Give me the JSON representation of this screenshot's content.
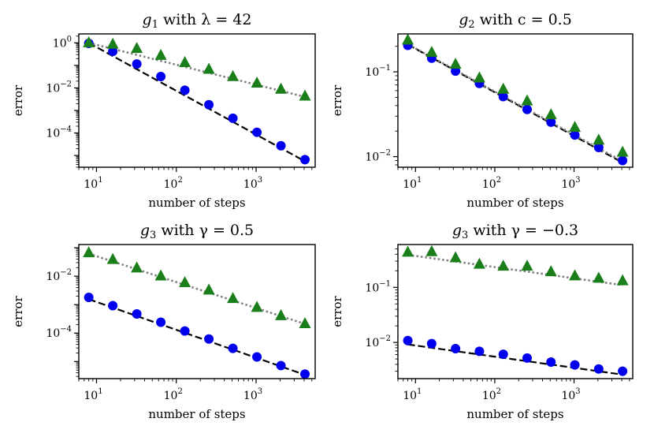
{
  "figure": {
    "xlabel": "number of steps",
    "ylabel": "error"
  },
  "colors": {
    "circle": "#0000ee",
    "triangle": "#1a7f1a",
    "dashed": "#000000",
    "dotted": "#808080"
  },
  "chart_data": [
    {
      "type": "scatter",
      "title": "g1 with λ = 42",
      "title_parts": [
        "g",
        "1",
        " with λ = 42"
      ],
      "xlabel": "number of steps",
      "ylabel": "error",
      "xscale": "log",
      "yscale": "log",
      "xlim": [
        6,
        5500
      ],
      "ylim": [
        3e-06,
        2.5
      ],
      "xticks": [
        {
          "base": "10",
          "exp": "1"
        },
        {
          "base": "10",
          "exp": "2"
        },
        {
          "base": "10",
          "exp": "3"
        }
      ],
      "xtick_values": [
        10,
        100,
        1000
      ],
      "yticks": [
        {
          "base": "10",
          "exp": "−4"
        },
        {
          "base": "10",
          "exp": "−2"
        },
        {
          "base": "10",
          "exp": "0"
        }
      ],
      "ytick_values": [
        0.0001,
        0.01,
        1
      ],
      "x": [
        8,
        16,
        32,
        64,
        128,
        256,
        512,
        1024,
        2048,
        4096
      ],
      "series": [
        {
          "name": "circles",
          "marker": "circle",
          "values": [
            0.95,
            0.42,
            0.115,
            0.032,
            0.0079,
            0.0018,
            0.00045,
            0.000107,
            2.7e-05,
            6.5e-06
          ]
        },
        {
          "name": "triangles",
          "marker": "triangle",
          "values": [
            0.98,
            0.85,
            0.55,
            0.27,
            0.13,
            0.065,
            0.031,
            0.016,
            0.0085,
            0.0042
          ]
        }
      ],
      "fits": [
        {
          "name": "dashed fit",
          "style": "dashed",
          "x": [
            8,
            4096
          ],
          "y": [
            1.0,
            5.5e-06
          ]
        },
        {
          "name": "dotted fit",
          "style": "dotted",
          "x": [
            8,
            4096
          ],
          "y": [
            1.0,
            0.004
          ]
        }
      ]
    },
    {
      "type": "scatter",
      "title": "g2 with c = 0.5",
      "title_parts": [
        "g",
        "2",
        " with c = 0.5"
      ],
      "xlabel": "number of steps",
      "ylabel": "error",
      "xscale": "log",
      "yscale": "log",
      "xlim": [
        6,
        5500
      ],
      "ylim": [
        0.0075,
        0.28
      ],
      "xticks": [
        {
          "base": "10",
          "exp": "1"
        },
        {
          "base": "10",
          "exp": "2"
        },
        {
          "base": "10",
          "exp": "3"
        }
      ],
      "xtick_values": [
        10,
        100,
        1000
      ],
      "yticks": [
        {
          "base": "10",
          "exp": "−2"
        },
        {
          "base": "10",
          "exp": "−1"
        }
      ],
      "ytick_values": [
        0.01,
        0.1
      ],
      "x": [
        8,
        16,
        32,
        64,
        128,
        256,
        512,
        1024,
        2048,
        4096
      ],
      "series": [
        {
          "name": "circles",
          "marker": "circle",
          "values": [
            0.205,
            0.145,
            0.102,
            0.073,
            0.051,
            0.036,
            0.0255,
            0.018,
            0.0128,
            0.009
          ]
        },
        {
          "name": "triangles",
          "marker": "triangle",
          "values": [
            0.235,
            0.168,
            0.122,
            0.084,
            0.062,
            0.045,
            0.031,
            0.022,
            0.0155,
            0.0112
          ]
        }
      ],
      "fits": [
        {
          "name": "dashed fit",
          "style": "dashed",
          "x": [
            8,
            4096
          ],
          "y": [
            0.21,
            0.0085
          ]
        },
        {
          "name": "dotted fit",
          "style": "dotted",
          "x": [
            8,
            4096
          ],
          "y": [
            0.212,
            0.0088
          ]
        }
      ]
    },
    {
      "type": "scatter",
      "title": "g3 with γ = 0.5",
      "title_parts": [
        "g",
        "3",
        " with γ = 0.5"
      ],
      "xlabel": "number of steps",
      "ylabel": "error",
      "xscale": "log",
      "yscale": "log",
      "xlim": [
        6,
        5500
      ],
      "ylim": [
        2.5e-06,
        0.13
      ],
      "xticks": [
        {
          "base": "10",
          "exp": "1"
        },
        {
          "base": "10",
          "exp": "2"
        },
        {
          "base": "10",
          "exp": "3"
        }
      ],
      "xtick_values": [
        10,
        100,
        1000
      ],
      "yticks": [
        {
          "base": "10",
          "exp": "−4"
        },
        {
          "base": "10",
          "exp": "−2"
        }
      ],
      "ytick_values": [
        0.0001,
        0.01
      ],
      "x": [
        8,
        16,
        32,
        64,
        128,
        256,
        512,
        1024,
        2048,
        4096
      ],
      "series": [
        {
          "name": "circles",
          "marker": "circle",
          "values": [
            0.0018,
            0.00092,
            0.00047,
            0.00024,
            0.000118,
            6.2e-05,
            2.9e-05,
            1.45e-05,
            7.2e-06,
            3.6e-06
          ]
        },
        {
          "name": "triangles",
          "marker": "triangle",
          "values": [
            0.065,
            0.038,
            0.019,
            0.01,
            0.0058,
            0.0032,
            0.0016,
            0.00078,
            0.0004,
            0.00021
          ]
        }
      ],
      "fits": [
        {
          "name": "dashed fit",
          "style": "dashed",
          "x": [
            8,
            4096
          ],
          "y": [
            0.00155,
            3.4e-06
          ]
        },
        {
          "name": "dotted fit",
          "style": "dotted",
          "x": [
            8,
            4096
          ],
          "y": [
            0.062,
            0.00021
          ]
        }
      ]
    },
    {
      "type": "scatter",
      "title": "g3 with γ = −0.3",
      "title_parts": [
        "g",
        "3",
        " with γ = −0.3"
      ],
      "xlabel": "number of steps",
      "ylabel": "error",
      "xscale": "log",
      "yscale": "log",
      "xlim": [
        6,
        5500
      ],
      "ylim": [
        0.0022,
        0.6
      ],
      "xticks": [
        {
          "base": "10",
          "exp": "1"
        },
        {
          "base": "10",
          "exp": "2"
        },
        {
          "base": "10",
          "exp": "3"
        }
      ],
      "xtick_values": [
        10,
        100,
        1000
      ],
      "yticks": [
        {
          "base": "10",
          "exp": "−2"
        },
        {
          "base": "10",
          "exp": "−1"
        }
      ],
      "ytick_values": [
        0.01,
        0.1
      ],
      "x": [
        8,
        16,
        32,
        64,
        128,
        256,
        512,
        1024,
        2048,
        4096
      ],
      "series": [
        {
          "name": "circles",
          "marker": "circle",
          "values": [
            0.0108,
            0.0095,
            0.0077,
            0.0069,
            0.0061,
            0.0052,
            0.0044,
            0.0039,
            0.0033,
            0.003
          ]
        },
        {
          "name": "triangles",
          "marker": "triangle",
          "values": [
            0.43,
            0.44,
            0.34,
            0.26,
            0.24,
            0.24,
            0.19,
            0.16,
            0.145,
            0.13
          ]
        }
      ],
      "fits": [
        {
          "name": "dashed fit",
          "style": "dashed",
          "x": [
            8,
            4096
          ],
          "y": [
            0.0092,
            0.0026
          ]
        },
        {
          "name": "dotted fit",
          "style": "dotted",
          "x": [
            8,
            4096
          ],
          "y": [
            0.39,
            0.11
          ]
        }
      ]
    }
  ]
}
